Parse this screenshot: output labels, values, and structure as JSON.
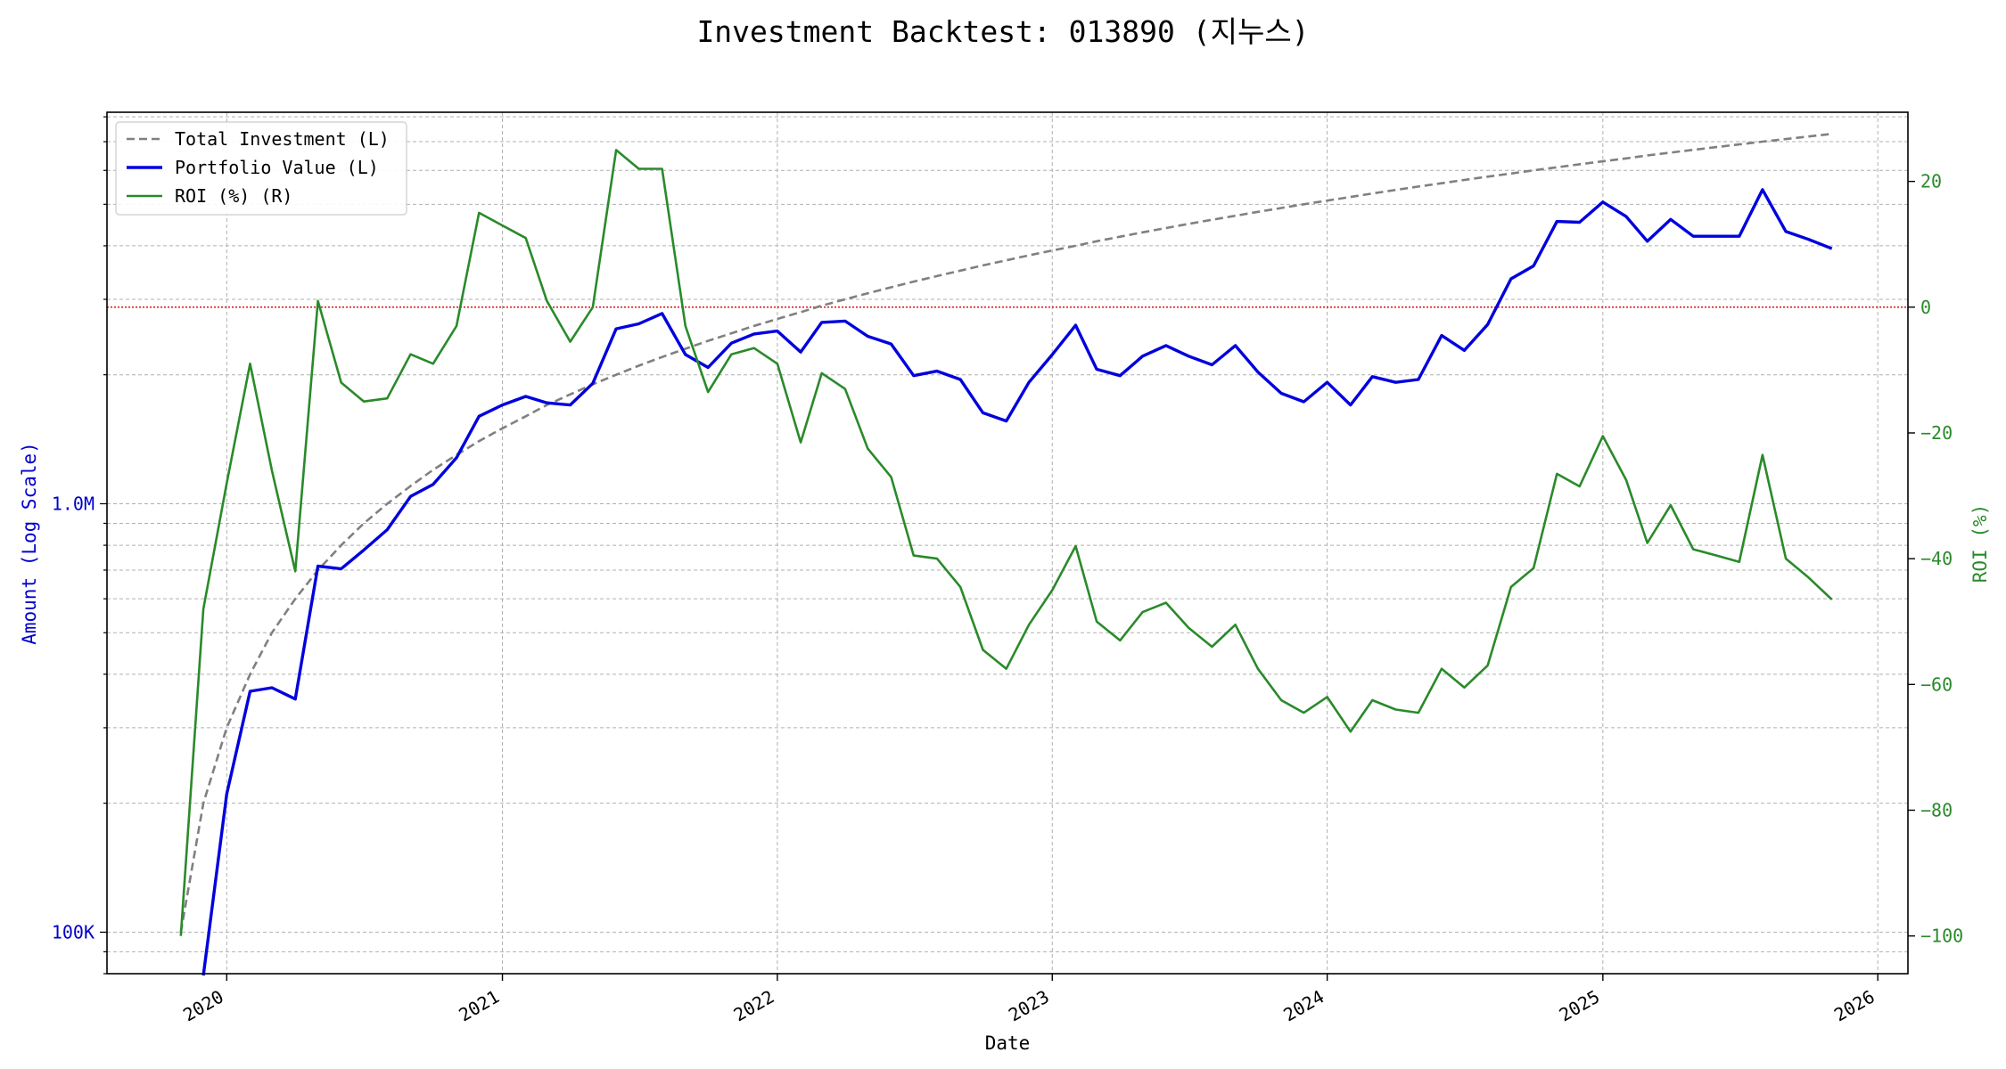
{
  "chart_data": {
    "type": "line",
    "title": "Investment Backtest: 013890 (지누스)",
    "xlabel": "Date",
    "ylabel_left": "Amount (Log Scale)",
    "ylabel_right": "ROI (%)",
    "x_tick_labels": [
      "2020",
      "2021",
      "2022",
      "2023",
      "2024",
      "2025",
      "2026"
    ],
    "y_left_scale": "log",
    "y_left_tick_labels": [
      {
        "value": 100000,
        "label": "100K"
      },
      {
        "value": 1000000,
        "label": "1.0M"
      }
    ],
    "y_left_range": [
      80000,
      8200000
    ],
    "y_right_range": [
      -106,
      31
    ],
    "y_right_tick_labels": [
      {
        "value": -100,
        "label": "−100"
      },
      {
        "value": -80,
        "label": "−80"
      },
      {
        "value": -60,
        "label": "−60"
      },
      {
        "value": -40,
        "label": "−40"
      },
      {
        "value": -20,
        "label": "−20"
      },
      {
        "value": 0,
        "label": "0"
      },
      {
        "value": 20,
        "label": "20"
      }
    ],
    "x_range": [
      "2019-07-26",
      "2026-02-10"
    ],
    "grid": true,
    "legend_position": "top-left",
    "reference_line": {
      "axis": "right",
      "value": 0,
      "color": "#cc0000",
      "style": "dotted"
    },
    "dates": [
      "2019-11-01",
      "2019-12-01",
      "2020-01-01",
      "2020-02-01",
      "2020-03-01",
      "2020-04-01",
      "2020-05-01",
      "2020-06-01",
      "2020-07-01",
      "2020-08-01",
      "2020-09-01",
      "2020-10-01",
      "2020-11-01",
      "2020-12-01",
      "2021-01-01",
      "2021-02-01",
      "2021-03-01",
      "2021-04-01",
      "2021-05-01",
      "2021-06-01",
      "2021-07-01",
      "2021-08-01",
      "2021-09-01",
      "2021-10-01",
      "2021-11-01",
      "2021-12-01",
      "2022-01-01",
      "2022-02-01",
      "2022-03-01",
      "2022-04-01",
      "2022-05-01",
      "2022-06-01",
      "2022-07-01",
      "2022-08-01",
      "2022-09-01",
      "2022-10-01",
      "2022-11-01",
      "2022-12-01",
      "2023-01-01",
      "2023-02-01",
      "2023-03-01",
      "2023-04-01",
      "2023-05-01",
      "2023-06-01",
      "2023-07-01",
      "2023-08-01",
      "2023-09-01",
      "2023-10-01",
      "2023-11-01",
      "2023-12-01",
      "2024-01-01",
      "2024-02-01",
      "2024-03-01",
      "2024-04-01",
      "2024-05-01",
      "2024-06-01",
      "2024-07-01",
      "2024-08-01",
      "2024-09-01",
      "2024-10-01",
      "2024-11-01",
      "2024-12-01",
      "2025-01-01",
      "2025-02-01",
      "2025-03-01",
      "2025-04-01",
      "2025-05-01",
      "2025-06-01",
      "2025-07-01",
      "2025-08-01",
      "2025-09-01",
      "2025-10-01",
      "2025-11-01"
    ],
    "series": [
      {
        "name": "Total Investment (L)",
        "axis": "left",
        "color": "#808080",
        "style": "dashed",
        "values": [
          100000,
          200000,
          300000,
          400000,
          500000,
          600000,
          700000,
          800000,
          900000,
          1000000,
          1100000,
          1200000,
          1300000,
          1400000,
          1500000,
          1600000,
          1700000,
          1800000,
          1900000,
          2000000,
          2100000,
          2200000,
          2300000,
          2400000,
          2500000,
          2600000,
          2700000,
          2800000,
          2900000,
          3000000,
          3100000,
          3200000,
          3300000,
          3400000,
          3500000,
          3600000,
          3700000,
          3800000,
          3900000,
          4000000,
          4100000,
          4200000,
          4300000,
          4400000,
          4500000,
          4600000,
          4700000,
          4800000,
          4900000,
          5000000,
          5100000,
          5200000,
          5300000,
          5400000,
          5500000,
          5600000,
          5700000,
          5800000,
          5900000,
          6000000,
          6100000,
          6200000,
          6300000,
          6400000,
          6500000,
          6600000,
          6700000,
          6800000,
          6900000,
          7000000,
          7100000,
          7200000,
          7300000
        ]
      },
      {
        "name": "Portfolio Value (L)",
        "axis": "left",
        "color": "#0000dd",
        "style": "solid",
        "values": [
          null,
          null,
          210000,
          365000,
          372000,
          350000,
          715000,
          705000,
          780000,
          870000,
          1040000,
          1110000,
          1280000,
          1600000,
          1700000,
          1780000,
          1720000,
          1700000,
          1910000,
          2560000,
          2630000,
          2780000,
          2230000,
          2080000,
          2370000,
          2490000,
          2530000,
          2260000,
          2650000,
          2670000,
          2460000,
          2360000,
          1990000,
          2040000,
          1950000,
          1630000,
          1560000,
          1920000,
          2230000,
          2610000,
          2060000,
          1990000,
          2210000,
          2340000,
          2210000,
          2110000,
          2340000,
          2030000,
          1810000,
          1730000,
          1920000,
          1700000,
          1980000,
          1920000,
          1950000,
          2470000,
          2280000,
          2620000,
          3350000,
          3590000,
          4560000,
          4540000,
          5060000,
          4680000,
          4100000,
          4610000,
          4210000,
          4210000,
          4210000,
          5410000,
          4320000,
          4140000,
          3940000
        ]
      },
      {
        "name": "ROI (%) (R)",
        "axis": "right",
        "color": "#2a8a2a",
        "style": "solid",
        "values": [
          -100,
          -48,
          -28,
          -9,
          -26,
          -42,
          1,
          -12,
          -15,
          -14.5,
          -7.5,
          -9,
          -3,
          15,
          13,
          11,
          1,
          -5.5,
          0,
          25,
          22,
          22,
          -3,
          -13.5,
          -7.5,
          -6.5,
          -9,
          -21.5,
          -10.5,
          -13,
          -22.5,
          -27,
          -39.5,
          -40,
          -44.5,
          -54.5,
          -57.5,
          -50.5,
          -45,
          -38,
          -50,
          -53,
          -48.5,
          -47,
          -51,
          -54,
          -50.5,
          -57.5,
          -62.5,
          -64.5,
          -62,
          -67.5,
          -62.5,
          -64,
          -64.5,
          -57.5,
          -60.5,
          -57,
          -44.5,
          -41.5,
          -26.5,
          -28.5,
          -20.5,
          -27.5,
          -37.5,
          -31.5,
          -38.5,
          -39.5,
          -40.5,
          -23.5,
          -40,
          -43,
          -46.5
        ]
      }
    ]
  }
}
